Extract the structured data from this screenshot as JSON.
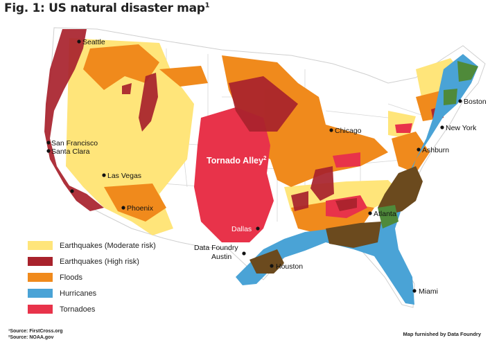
{
  "title": "Fig. 1: US natural disaster map",
  "title_note": "1",
  "colors": {
    "earthquake_moderate": "#ffe57a",
    "earthquake_high": "#a8222c",
    "floods": "#f08a1c",
    "hurricanes": "#4aa3d6",
    "tornadoes": "#e8334a",
    "hurricane_flood_overlap": "#6b4a1e",
    "hurricane_quake_overlap": "#4f8a3a",
    "land": "#ffffff",
    "border": "#cfcfcf"
  },
  "cities": [
    {
      "name": "Seattle"
    },
    {
      "name": "San Francisco"
    },
    {
      "name": "Santa Clara"
    },
    {
      "name": "Las Vegas"
    },
    {
      "name": "Phoenix"
    },
    {
      "name": "Dallas"
    },
    {
      "name": "Data Foundry"
    },
    {
      "name": "Austin"
    },
    {
      "name": "Houston"
    },
    {
      "name": "Chicago"
    },
    {
      "name": "Atlanta"
    },
    {
      "name": "Ashburn"
    },
    {
      "name": "New York"
    },
    {
      "name": "Boston"
    },
    {
      "name": "Miami"
    }
  ],
  "tornado_alley": {
    "label": "Tornado Alley",
    "note": "2"
  },
  "legend": [
    {
      "label": "Earthquakes (Moderate risk)",
      "color_key": "earthquake_moderate"
    },
    {
      "label": "Earthquakes (High risk)",
      "color_key": "earthquake_high"
    },
    {
      "label": "Floods",
      "color_key": "floods"
    },
    {
      "label": "Hurricanes",
      "color_key": "hurricanes"
    },
    {
      "label": "Tornadoes",
      "color_key": "tornadoes"
    }
  ],
  "footnotes": [
    "¹Source: FirstCross.org",
    "²Source: NOAA.gov"
  ],
  "credit": "Map furnished by Data Foundry"
}
